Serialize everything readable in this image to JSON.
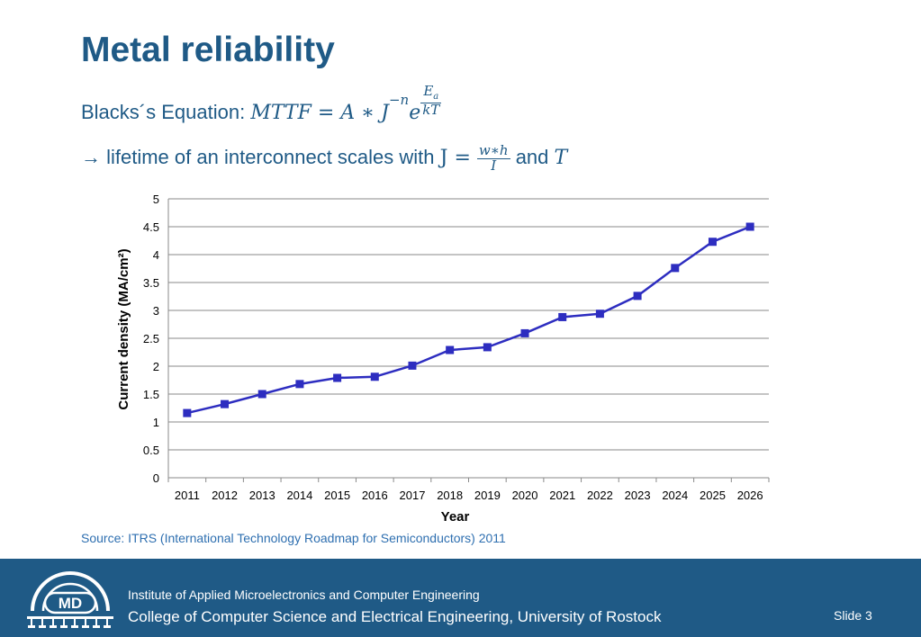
{
  "slide": {
    "title": "Metal reliability",
    "equation_label": "Blacks´s Equation: ",
    "equation": {
      "lhs": "MTTF",
      "eq": " = ",
      "A": "A",
      "times": " ∗ ",
      "J": "J",
      "J_exp": "−n",
      "e": "e",
      "e_exp_num": "E",
      "e_exp_num_sub": "a",
      "e_exp_den": "kT"
    },
    "scale_arrow": "→",
    "scale_text": " lifetime of an interconnect scales with ",
    "scale_J": "J = ",
    "scale_frac_num": "w∗h",
    "scale_frac_den": "I",
    "scale_and": " and ",
    "scale_T": "T",
    "source": "Source: ITRS (International Technology Roadmap for Semiconductors) 2011"
  },
  "footer": {
    "institute": "Institute of Applied Microelectronics and Computer Engineering",
    "college": "College of Computer Science and Electrical Engineering, University of Rostock",
    "slide_number": "Slide 3",
    "logo_text": "MD"
  },
  "colors": {
    "title": "#1f5a86",
    "series": "#2d2dc0",
    "footer_bg": "#1f5a86",
    "source": "#2e6fb0"
  },
  "chart_data": {
    "type": "line",
    "title": "",
    "xlabel": "Year",
    "ylabel": "Current density (MA/cm²)",
    "categories": [
      "2011",
      "2012",
      "2013",
      "2014",
      "2015",
      "2016",
      "2017",
      "2018",
      "2019",
      "2020",
      "2021",
      "2022",
      "2023",
      "2024",
      "2025",
      "2026"
    ],
    "series": [
      {
        "values": [
          1.16,
          1.32,
          1.5,
          1.68,
          1.79,
          1.81,
          2.01,
          2.29,
          2.34,
          2.59,
          2.88,
          2.94,
          3.26,
          3.76,
          4.23,
          4.5
        ]
      }
    ],
    "ylim": [
      0,
      5
    ],
    "yticks": [
      "0",
      "0.5",
      "1",
      "1.5",
      "2",
      "2.5",
      "3",
      "3.5",
      "4",
      "4.5",
      "5"
    ],
    "grid": true,
    "marker": "square"
  }
}
